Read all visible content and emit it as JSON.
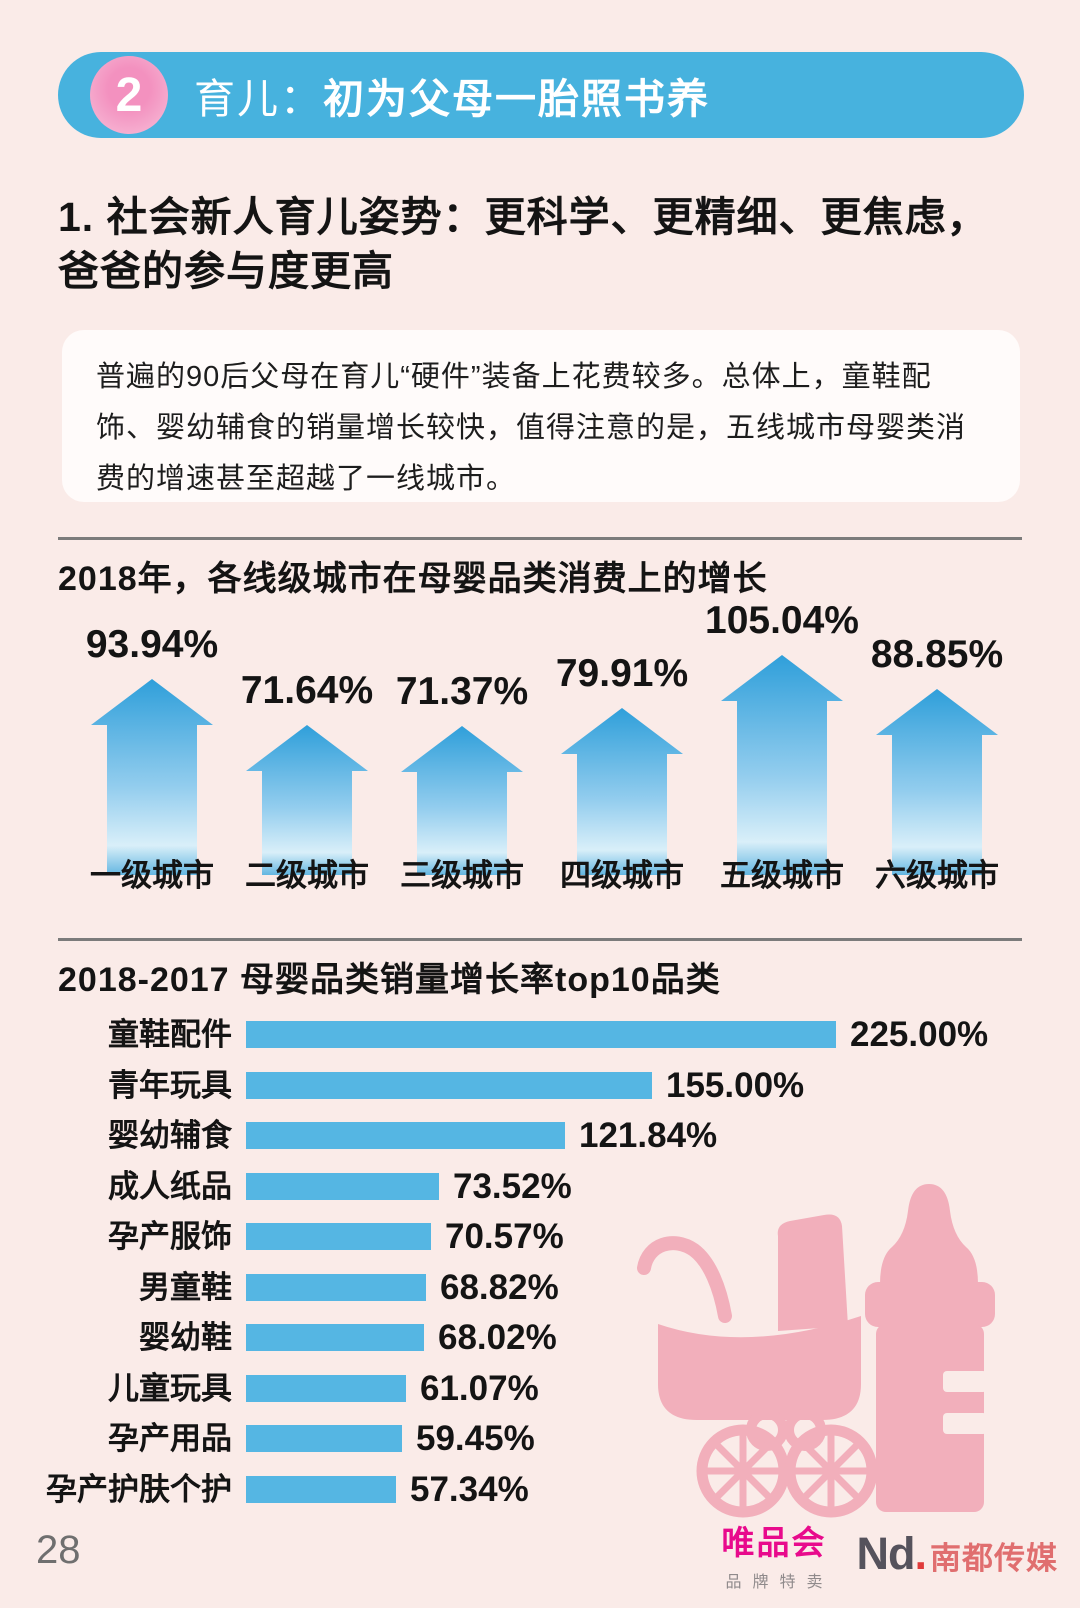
{
  "banner": {
    "number": "2",
    "title_light": "育儿：",
    "title_bold": "初为父母一胎照书养",
    "bg_color": "#47B2DE",
    "circle_color": "#F391BF"
  },
  "section_heading": "1. 社会新人育儿姿势：更科学、更精细、更焦虑，\n爸爸的参与度更高",
  "intro_box": {
    "text": "普遍的90后父母在育儿“硬件”装备上花费较多。总体上，童鞋配饰、婴幼辅食的销量增长较快，值得注意的是，五线城市母婴类消费的增速甚至超越了一线城市。"
  },
  "chart_data": [
    {
      "type": "bar",
      "variant": "up-arrow-pictogram",
      "title": "2018年，各线级城市在母婴品类消费上的增长",
      "categories": [
        "一级城市",
        "二级城市",
        "三级城市",
        "四级城市",
        "五级城市",
        "六级城市"
      ],
      "values": [
        93.94,
        71.64,
        71.37,
        79.91,
        105.04,
        88.85
      ],
      "labels": [
        "93.94%",
        "71.64%",
        "71.37%",
        "79.91%",
        "105.04%",
        "88.85%"
      ],
      "ylabel": "",
      "xlabel": "",
      "bar_color_top": "#2F9FDA",
      "bar_color_bottom": "#D9EFF9",
      "legend": "none",
      "grid": "off"
    },
    {
      "type": "bar",
      "orientation": "horizontal",
      "title": "2018-2017 母婴品类销量增长率top10品类",
      "categories": [
        "童鞋配件",
        "青年玩具",
        "婴幼辅食",
        "成人纸品",
        "孕产服饰",
        "男童鞋",
        "婴幼鞋",
        "儿童玩具",
        "孕产用品",
        "孕产护肤个护"
      ],
      "values": [
        225.0,
        155.0,
        121.84,
        73.52,
        70.57,
        68.82,
        68.02,
        61.07,
        59.45,
        57.34
      ],
      "labels": [
        "225.00%",
        "155.00%",
        "121.84%",
        "73.52%",
        "70.57%",
        "68.82%",
        "68.02%",
        "61.07%",
        "59.45%",
        "57.34%"
      ],
      "xlim": [
        0,
        240
      ],
      "bar_color": "#55B6E3",
      "legend": "none",
      "grid": "off"
    }
  ],
  "decor": {
    "illustration": "baby-stroller-and-bottle",
    "color": "#F2AFBB"
  },
  "footer": {
    "page_number": "28",
    "vip_logo": "唯品会",
    "vip_sub": "品牌特卖",
    "nd_mark": "Nd",
    "nd_dot": ".",
    "nd_name": "南都传媒"
  },
  "colors": {
    "page_background": "#FAEBE8",
    "banner_blue": "#47B2DE",
    "bar_blue": "#55B6E3",
    "decor_pink": "#F2AFBB",
    "vip_magenta": "#E80A8C",
    "nd_red": "#E06E6F",
    "divider_gray": "#7B7B7B"
  }
}
